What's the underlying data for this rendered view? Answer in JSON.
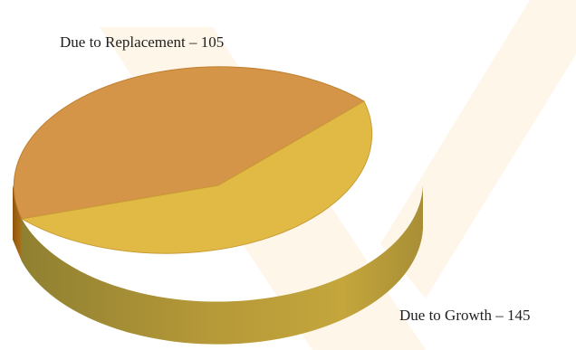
{
  "chart_data": {
    "type": "pie",
    "title": "",
    "slices": [
      {
        "label": "Due to Replacement",
        "value": 105,
        "color": "#D49549"
      },
      {
        "label": "Due to Growth",
        "value": 145,
        "color": "#E1BA45"
      }
    ],
    "data_labels": [
      "Due to Replacement – 105",
      "Due to Growth – 145"
    ],
    "legend": "none",
    "style": "3d"
  },
  "colors": {
    "replacement_top": "#D49549",
    "replacement_side": "#9E6410",
    "growth_top": "#E1BA45",
    "growth_side": "#B59838",
    "background": "#FFFFFF",
    "watermark": "#FFF6EA"
  }
}
